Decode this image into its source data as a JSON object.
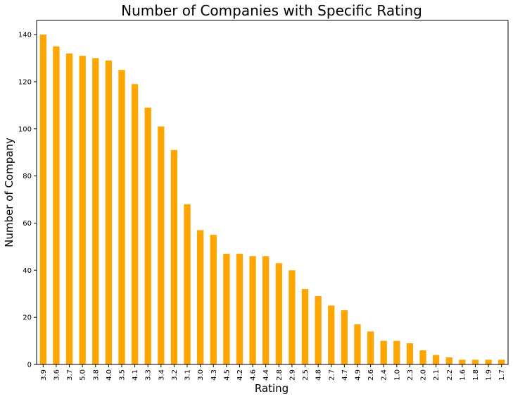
{
  "chart_data": {
    "type": "bar",
    "title": "Number of Companies with Specific Rating",
    "xlabel": "Rating",
    "ylabel": "Number of Company",
    "categories": [
      "3.9",
      "3.6",
      "3.7",
      "5.0",
      "3.8",
      "4.0",
      "3.5",
      "4.1",
      "3.3",
      "3.4",
      "3.2",
      "3.1",
      "3.0",
      "4.3",
      "4.5",
      "4.2",
      "4.6",
      "4.4",
      "2.8",
      "2.9",
      "2.5",
      "4.8",
      "2.7",
      "4.7",
      "4.9",
      "2.6",
      "2.4",
      "1.0",
      "2.3",
      "2.0",
      "2.1",
      "2.2",
      "1.6",
      "1.8",
      "1.9",
      "1.7"
    ],
    "values": [
      140,
      135,
      132,
      131,
      130,
      129,
      125,
      119,
      109,
      101,
      91,
      68,
      57,
      55,
      47,
      47,
      46,
      46,
      43,
      40,
      32,
      29,
      25,
      23,
      17,
      14,
      10,
      10,
      9,
      6,
      4,
      3,
      2,
      2,
      2,
      2
    ],
    "ylim": [
      0,
      146
    ],
    "yticks": [
      0,
      20,
      40,
      60,
      80,
      100,
      120,
      140
    ],
    "bar_color": "#ffa500",
    "grid": false,
    "legend": "none"
  }
}
